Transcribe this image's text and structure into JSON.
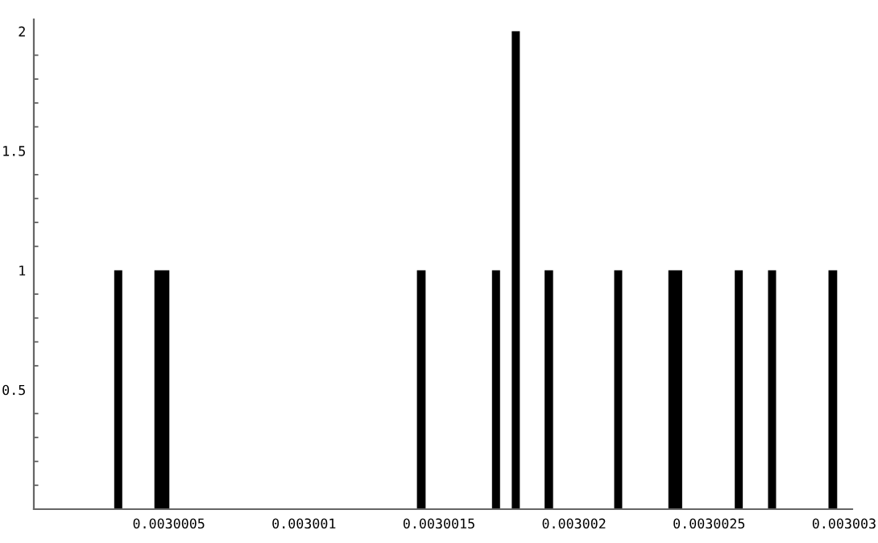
{
  "chart_data": {
    "type": "histogram",
    "color": "#000000",
    "bins": [
      0.0030002976,
      0.0030003274,
      0.0030004464,
      0.0030005018,
      0.0030014184,
      0.0030014505,
      0.0030016963,
      0.0030017261,
      0.0030017695,
      0.0030017993,
      0.003001891,
      0.0030019225,
      0.0030021487,
      0.0030021784,
      0.0030023493,
      0.0030024004,
      0.0030025951,
      0.0030026248,
      0.0030027183,
      0.0030027481,
      0.0030029421,
      0.0030029743
    ],
    "values": [
      1,
      0,
      1,
      0,
      1,
      0,
      1,
      0,
      2,
      0,
      1,
      0,
      1,
      0,
      1,
      0,
      1,
      0,
      1,
      0,
      1
    ],
    "xlim": [
      0.003,
      0.00300303
    ],
    "xticks": [
      {
        "value": 0.0030005,
        "label": "0.0030005"
      },
      {
        "value": 0.003001,
        "label": "0.003001"
      },
      {
        "value": 0.0030015,
        "label": "0.0030015"
      },
      {
        "value": 0.003002,
        "label": "0.003002"
      },
      {
        "value": 0.0030025,
        "label": "0.0030025"
      },
      {
        "value": 0.003003,
        "label": "0.003003"
      }
    ],
    "ylim": [
      0,
      2.05
    ],
    "yticks": [
      0.5,
      1,
      1.5,
      2
    ],
    "grid": false,
    "legend": false
  }
}
